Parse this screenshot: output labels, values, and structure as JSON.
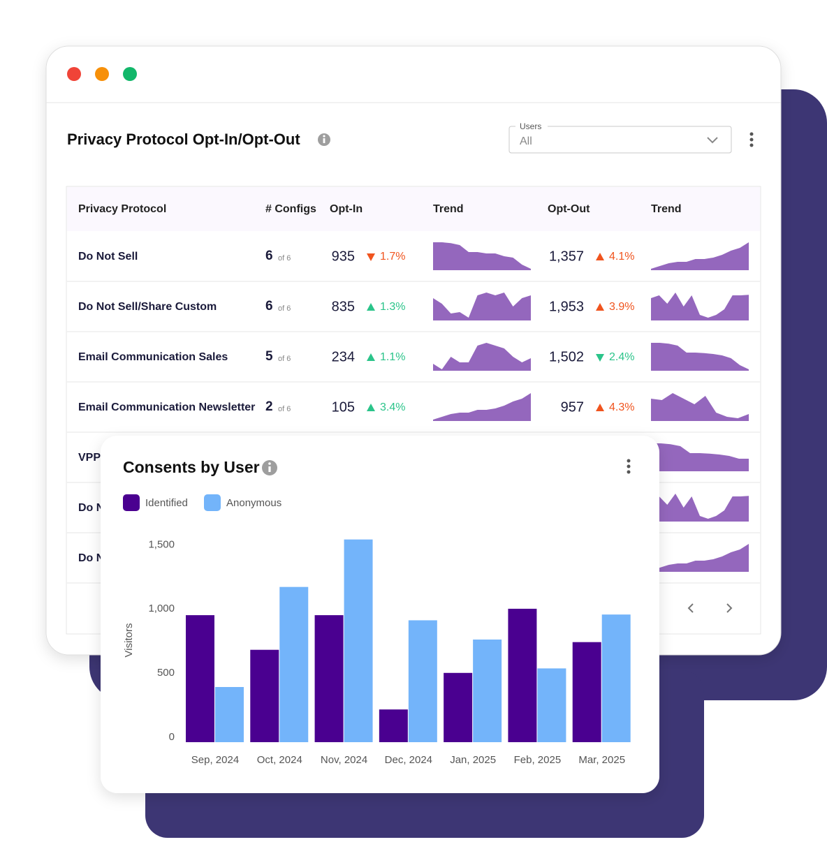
{
  "window": {
    "title": "Privacy Protocol Opt-In/Opt-Out",
    "filter_label": "Users",
    "filter_value": "All"
  },
  "table": {
    "columns": [
      "Privacy Protocol",
      "# Configs",
      "Opt-In",
      "Trend",
      "Opt-Out",
      "Trend"
    ],
    "rows": [
      {
        "name": "Do Not Sell",
        "configs": "6",
        "configs_total": "of 6",
        "opt_in": "935",
        "opt_in_change": "1.7%",
        "opt_in_direction": "down",
        "opt_in_trend": [
          10,
          10,
          9.7,
          9,
          6.5,
          6.5,
          6,
          6,
          5,
          4.5,
          2,
          0.5
        ],
        "opt_out": "1,357",
        "opt_out_change": "4.1%",
        "opt_out_direction": "up",
        "opt_out_trend": [
          0.5,
          1.5,
          2.5,
          3,
          3,
          4,
          4,
          4.5,
          5.5,
          7,
          8,
          10
        ]
      },
      {
        "name": "Do Not Sell/Share Custom",
        "configs": "6",
        "configs_total": "of 6",
        "opt_in": "835",
        "opt_in_change": "1.3%",
        "opt_in_direction": "up",
        "opt_in_trend": [
          8,
          6,
          2.5,
          3,
          1,
          9,
          10,
          9,
          10,
          5,
          8,
          9
        ],
        "opt_out": "1,953",
        "opt_out_change": "3.9%",
        "opt_out_direction": "up",
        "opt_out_trend": [
          8,
          9,
          6,
          10,
          5,
          9,
          2,
          1,
          2,
          4,
          9,
          9,
          9.2
        ]
      },
      {
        "name": "Email Communication Sales",
        "configs": "5",
        "configs_total": "of 6",
        "opt_in": "234",
        "opt_in_change": "1.1%",
        "opt_in_direction": "up",
        "opt_in_trend": [
          2.5,
          0.5,
          5,
          3,
          3,
          9,
          10,
          9,
          8,
          5,
          3,
          4.5
        ],
        "opt_out": "1,502",
        "opt_out_change": "2.4%",
        "opt_out_direction": "down",
        "opt_out_trend": [
          10,
          10,
          9.7,
          9,
          6.5,
          6.5,
          6.3,
          6,
          5.5,
          4.5,
          2,
          0.5
        ]
      },
      {
        "name": "Email Communication Newsletter",
        "configs": "2",
        "configs_total": "of 6",
        "opt_in": "105",
        "opt_in_change": "3.4%",
        "opt_in_direction": "up",
        "opt_in_trend": [
          0.5,
          1.5,
          2.5,
          3,
          3,
          4,
          4,
          4.5,
          5.5,
          7,
          8,
          10
        ],
        "opt_out": "957",
        "opt_out_change": "4.3%",
        "opt_out_direction": "up",
        "opt_out_trend": [
          8,
          7.5,
          10,
          8,
          6,
          9,
          3,
          1.5,
          1,
          2.5
        ]
      },
      {
        "name": "VPP",
        "opt_out_trend": [
          10,
          10,
          9.7,
          9,
          6.5,
          6.5,
          6.3,
          6,
          5.5,
          4.5,
          4.5
        ]
      },
      {
        "name": "Do N",
        "opt_out_trend": [
          8,
          9,
          6,
          10,
          5,
          9,
          2,
          1,
          2,
          4,
          9,
          9,
          9.2
        ]
      },
      {
        "name": "Do N",
        "opt_out_trend": [
          0.5,
          1.5,
          2.5,
          3,
          3,
          4,
          4,
          4.5,
          5.5,
          7,
          8,
          10
        ]
      }
    ]
  },
  "chart_data": {
    "type": "bar",
    "title": "Consents by User",
    "y_label": "Visitors",
    "categories": [
      "Sep, 2024",
      "Oct, 2024",
      "Nov, 2024",
      "Dec, 2024",
      "Jan, 2025",
      "Feb, 2025",
      "Mar, 2025"
    ],
    "series": [
      {
        "name": "Identified",
        "color": "#4a0090",
        "values": [
          990,
          720,
          990,
          255,
          540,
          1040,
          780
        ]
      },
      {
        "name": "Anonymous",
        "color": "#73b4fa",
        "values": [
          430,
          1210,
          1580,
          950,
          800,
          575,
          995
        ]
      }
    ],
    "ylim": [
      0,
      1600
    ],
    "yticks": [
      0,
      500,
      {
        "value": 1000,
        "label": "1,000"
      },
      {
        "value": 1500,
        "label": "1,500"
      }
    ]
  }
}
